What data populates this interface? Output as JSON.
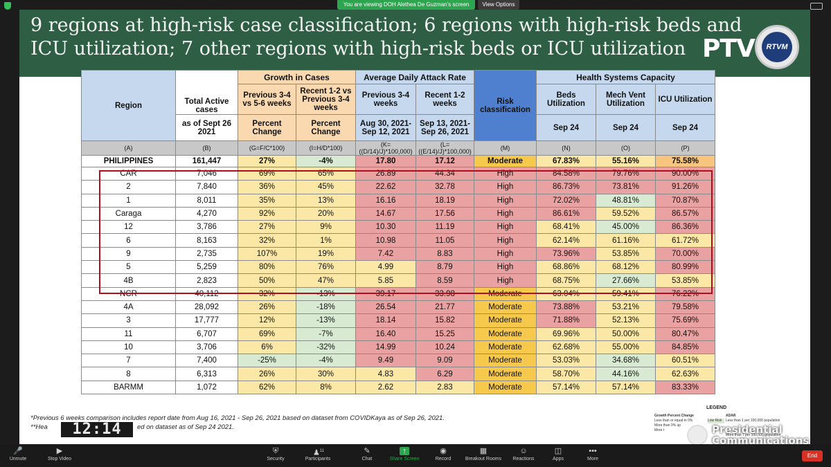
{
  "banner": {
    "sharing_text": "You are viewing DOH Alethea De Guzman's screen",
    "view_options": "View Options"
  },
  "slide": {
    "title_line1": "9 regions at high-risk case classification; 6 regions with high-risk beds and",
    "title_line2": "ICU utilization; 7 other regions with high-risk beds or ICU utilization",
    "ptv_logo": "PTV",
    "rtvm_logo": "RTVM"
  },
  "table": {
    "headers": {
      "region": "Region",
      "total_active": "Total Active cases",
      "as_of": "as of Sept 26 2021",
      "growth": "Growth in Cases",
      "prev": "Previous 3-4 vs 5-6 weeks",
      "recent": "Recent 1-2 vs Previous 3-4 weeks",
      "pct1": "Percent Change",
      "pct2": "Percent Change",
      "adar": "Average Daily Attack Rate",
      "adar_prev": "Previous 3-4 weeks",
      "adar_recent": "Recent 1-2 weeks",
      "adar_prev_dates": "Aug 30, 2021- Sep 12, 2021",
      "adar_recent_dates": "Sep 13, 2021- Sep 26, 2021",
      "risk": "Risk classification",
      "health": "Health Systems Capacity",
      "beds": "Beds Utilization",
      "mech": "Mech Vent Utilization",
      "icu": "ICU Utilization",
      "sep24a": "Sep 24",
      "sep24b": "Sep 24",
      "sep24c": "Sep 24"
    },
    "letters": [
      "(A)",
      "(B)",
      "(G=F/C*100)",
      "(I=H/D*100)",
      "(K=((D/14)/J)*100,000)",
      "(L=((E/14)/J)*100,000)",
      "(M)",
      "(N)",
      "(O)",
      "(P)"
    ],
    "rows": [
      {
        "region": "PHILIPPINES",
        "active": "161,447",
        "prev": "27%",
        "recent": "-4%",
        "adar_prev": "17.80",
        "adar_recent": "17.12",
        "risk": "Moderate",
        "beds": "67.83%",
        "mech": "55.16%",
        "icu": "75.58%"
      },
      {
        "region": "CAR",
        "active": "7,046",
        "prev": "69%",
        "recent": "65%",
        "adar_prev": "26.89",
        "adar_recent": "44.34",
        "risk": "High",
        "beds": "84.58%",
        "mech": "79.76%",
        "icu": "90.00%"
      },
      {
        "region": "2",
        "active": "7,840",
        "prev": "36%",
        "recent": "45%",
        "adar_prev": "22.62",
        "adar_recent": "32.78",
        "risk": "High",
        "beds": "86.73%",
        "mech": "73.81%",
        "icu": "91.26%"
      },
      {
        "region": "1",
        "active": "8,011",
        "prev": "35%",
        "recent": "13%",
        "adar_prev": "16.16",
        "adar_recent": "18.19",
        "risk": "High",
        "beds": "72.02%",
        "mech": "48.81%",
        "icu": "70.87%"
      },
      {
        "region": "Caraga",
        "active": "4,270",
        "prev": "92%",
        "recent": "20%",
        "adar_prev": "14.67",
        "adar_recent": "17.56",
        "risk": "High",
        "beds": "86.61%",
        "mech": "59.52%",
        "icu": "86.57%"
      },
      {
        "region": "12",
        "active": "3,786",
        "prev": "27%",
        "recent": "9%",
        "adar_prev": "10.30",
        "adar_recent": "11.19",
        "risk": "High",
        "beds": "68.41%",
        "mech": "45.00%",
        "icu": "86.36%"
      },
      {
        "region": "6",
        "active": "8,163",
        "prev": "32%",
        "recent": "1%",
        "adar_prev": "10.98",
        "adar_recent": "11.05",
        "risk": "High",
        "beds": "62.14%",
        "mech": "61.16%",
        "icu": "61.72%"
      },
      {
        "region": "9",
        "active": "2,735",
        "prev": "107%",
        "recent": "19%",
        "adar_prev": "7.42",
        "adar_recent": "8.83",
        "risk": "High",
        "beds": "73.96%",
        "mech": "53.85%",
        "icu": "70.00%"
      },
      {
        "region": "5",
        "active": "5,259",
        "prev": "80%",
        "recent": "76%",
        "adar_prev": "4.99",
        "adar_recent": "8.79",
        "risk": "High",
        "beds": "68.86%",
        "mech": "68.12%",
        "icu": "80.99%"
      },
      {
        "region": "4B",
        "active": "2,823",
        "prev": "50%",
        "recent": "47%",
        "adar_prev": "5.85",
        "adar_recent": "8.59",
        "risk": "High",
        "beds": "68.75%",
        "mech": "27.66%",
        "icu": "53.85%"
      },
      {
        "region": "NCR",
        "active": "40,112",
        "prev": "32%",
        "recent": "-13%",
        "adar_prev": "39.17",
        "adar_recent": "33.98",
        "risk": "Moderate",
        "beds": "63.04%",
        "mech": "59.41%",
        "icu": "76.22%"
      },
      {
        "region": "4A",
        "active": "28,092",
        "prev": "26%",
        "recent": "-18%",
        "adar_prev": "26.54",
        "adar_recent": "21.77",
        "risk": "Moderate",
        "beds": "73.88%",
        "mech": "53.21%",
        "icu": "79.58%"
      },
      {
        "region": "3",
        "active": "17,777",
        "prev": "12%",
        "recent": "-13%",
        "adar_prev": "18.14",
        "adar_recent": "15.82",
        "risk": "Moderate",
        "beds": "71.88%",
        "mech": "52.13%",
        "icu": "75.69%"
      },
      {
        "region": "11",
        "active": "6,707",
        "prev": "69%",
        "recent": "-7%",
        "adar_prev": "16.40",
        "adar_recent": "15.25",
        "risk": "Moderate",
        "beds": "69.96%",
        "mech": "50.00%",
        "icu": "80.47%"
      },
      {
        "region": "10",
        "active": "3,706",
        "prev": "6%",
        "recent": "-32%",
        "adar_prev": "14.99",
        "adar_recent": "10.24",
        "risk": "Moderate",
        "beds": "62.68%",
        "mech": "55.00%",
        "icu": "84.85%"
      },
      {
        "region": "7",
        "active": "7,400",
        "prev": "-25%",
        "recent": "-4%",
        "adar_prev": "9.49",
        "adar_recent": "9.09",
        "risk": "Moderate",
        "beds": "53.03%",
        "mech": "34.68%",
        "icu": "60.51%"
      },
      {
        "region": "8",
        "active": "6,313",
        "prev": "26%",
        "recent": "30%",
        "adar_prev": "4.83",
        "adar_recent": "6.29",
        "risk": "Moderate",
        "beds": "58.70%",
        "mech": "44.16%",
        "icu": "62.63%"
      },
      {
        "region": "BARMM",
        "active": "1,072",
        "prev": "62%",
        "recent": "8%",
        "adar_prev": "2.62",
        "adar_recent": "2.83",
        "risk": "Moderate",
        "beds": "57.14%",
        "mech": "57.14%",
        "icu": "83.33%"
      }
    ],
    "colors": {
      "white": "#ffffff",
      "yellow": "#fbe8a6",
      "red": "#e9a1a1",
      "green": "#d9ead3",
      "orange": "#f7c57e",
      "moderate": "#f6c84b",
      "high": "#e9a1a1",
      "highlight_border": "#b00d1d"
    }
  },
  "footnotes": {
    "line1": "*Previous 6 weeks comparison includes report date from Aug 16, 2021 - Sep 26, 2021 based on dataset from COVIDKaya as of Sep 26, 2021.",
    "line2a": "**Hea",
    "line2b": "ed on dataset as of Sep 24 2021."
  },
  "legend": {
    "title": "LEGEND",
    "growth_head": "Growth Percent Change",
    "adar_head": "ADAR",
    "g1": "Less than or equal to 0%",
    "g2": "More than 0% up",
    "g3": "More t",
    "low_risk": "Low Risk",
    "a1": "Less than 1 per 100,000 population",
    "a2": "More than 7 per 100,000 population"
  },
  "clock": "12:14",
  "watermark": {
    "line1": "Presidential",
    "line2": "Communications"
  },
  "toolbar": {
    "items": [
      {
        "label": "Unmute",
        "icon": "mic-off-icon"
      },
      {
        "label": "Stop Video",
        "icon": "video-icon"
      },
      {
        "label": "Security",
        "icon": "shield-icon"
      },
      {
        "label": "Participants",
        "icon": "participants-icon",
        "badge": "11"
      },
      {
        "label": "Chat",
        "icon": "chat-icon"
      },
      {
        "label": "Share Screen",
        "icon": "share-screen-icon"
      },
      {
        "label": "Record",
        "icon": "record-icon"
      },
      {
        "label": "Breakout Rooms",
        "icon": "breakout-rooms-icon"
      },
      {
        "label": "Reactions",
        "icon": "reactions-icon"
      },
      {
        "label": "Apps",
        "icon": "apps-icon"
      },
      {
        "label": "More",
        "icon": "more-icon"
      }
    ],
    "end": "End"
  }
}
